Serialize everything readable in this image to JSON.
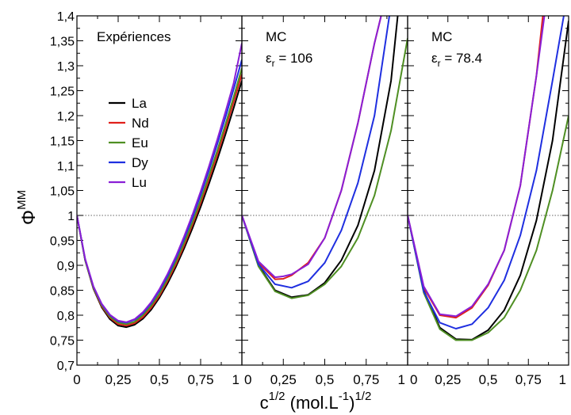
{
  "y_label": "Φ",
  "y_label_sup": "MM",
  "x_label_main": "c",
  "x_label_sup1": "1/2",
  "x_label_mid": " (mol.L",
  "x_label_sup2": "-1",
  "x_label_end": ")",
  "x_label_sup3": "1/2",
  "chart_data": [
    {
      "type": "line",
      "title": "Expériences",
      "subtitle": "",
      "xlim": [
        0,
        1
      ],
      "ylim": [
        0.7,
        1.4
      ],
      "x_ticks": [
        "0",
        "0,25",
        "0,5",
        "0,75",
        "1"
      ],
      "y_ticks": [
        "0,7",
        "0,75",
        "0,8",
        "0,85",
        "0,9",
        "0,95",
        "1",
        "1,05",
        "1,1",
        "1,15",
        "1,2",
        "1,25",
        "1,3",
        "1,35",
        "1,4"
      ],
      "reference_line": 1,
      "legend": [
        "La",
        "Nd",
        "Eu",
        "Dy",
        "Lu"
      ],
      "series": [
        {
          "name": "La",
          "color": "#000000",
          "x": [
            0,
            0.05,
            0.1,
            0.15,
            0.2,
            0.25,
            0.3,
            0.35,
            0.4,
            0.45,
            0.5,
            0.55,
            0.6,
            0.65,
            0.7,
            0.75,
            0.8,
            0.85,
            0.9,
            0.95,
            1.0
          ],
          "y": [
            1.0,
            0.91,
            0.853,
            0.816,
            0.792,
            0.779,
            0.776,
            0.781,
            0.793,
            0.811,
            0.835,
            0.864,
            0.897,
            0.934,
            0.974,
            1.017,
            1.063,
            1.111,
            1.162,
            1.215,
            1.27
          ]
        },
        {
          "name": "Nd",
          "color": "#e0201b",
          "x": [
            0,
            0.05,
            0.1,
            0.15,
            0.2,
            0.25,
            0.3,
            0.35,
            0.4,
            0.45,
            0.5,
            0.55,
            0.6,
            0.65,
            0.7,
            0.75,
            0.8,
            0.85,
            0.9,
            0.95,
            1.0
          ],
          "y": [
            1.0,
            0.91,
            0.854,
            0.818,
            0.795,
            0.782,
            0.779,
            0.784,
            0.796,
            0.815,
            0.839,
            0.869,
            0.902,
            0.94,
            0.981,
            1.025,
            1.072,
            1.121,
            1.173,
            1.227,
            1.283
          ]
        },
        {
          "name": "Eu",
          "color": "#4f8f23",
          "x": [
            0,
            0.05,
            0.1,
            0.15,
            0.2,
            0.25,
            0.3,
            0.35,
            0.4,
            0.45,
            0.5,
            0.55,
            0.6,
            0.65,
            0.7,
            0.75,
            0.8,
            0.85,
            0.9,
            0.95,
            1.0
          ],
          "y": [
            1.0,
            0.91,
            0.855,
            0.82,
            0.797,
            0.785,
            0.782,
            0.787,
            0.8,
            0.819,
            0.843,
            0.873,
            0.907,
            0.945,
            0.986,
            1.031,
            1.079,
            1.129,
            1.182,
            1.237,
            1.295
          ]
        },
        {
          "name": "Dy",
          "color": "#1f2fe0",
          "x": [
            0,
            0.05,
            0.1,
            0.15,
            0.2,
            0.25,
            0.3,
            0.35,
            0.4,
            0.45,
            0.5,
            0.55,
            0.6,
            0.65,
            0.7,
            0.75,
            0.8,
            0.85,
            0.9,
            0.95,
            1.0
          ],
          "y": [
            1.0,
            0.912,
            0.857,
            0.822,
            0.8,
            0.788,
            0.785,
            0.791,
            0.804,
            0.824,
            0.849,
            0.879,
            0.914,
            0.953,
            0.995,
            1.041,
            1.09,
            1.142,
            1.196,
            1.253,
            1.312
          ]
        },
        {
          "name": "Lu",
          "color": "#8a1fd6",
          "x": [
            0,
            0.05,
            0.1,
            0.15,
            0.2,
            0.25,
            0.3,
            0.35,
            0.4,
            0.45,
            0.5,
            0.55,
            0.6,
            0.65,
            0.7,
            0.75,
            0.8,
            0.85,
            0.9,
            0.95,
            1.0
          ],
          "y": [
            1.0,
            0.913,
            0.858,
            0.823,
            0.801,
            0.789,
            0.786,
            0.792,
            0.806,
            0.826,
            0.852,
            0.883,
            0.918,
            0.958,
            1.001,
            1.048,
            1.098,
            1.151,
            1.207,
            1.265,
            1.345
          ]
        }
      ]
    },
    {
      "type": "line",
      "title": "MC",
      "subtitle_symbol": "ε",
      "subtitle_sub": "r",
      "subtitle_value": "= 106",
      "xlim": [
        0,
        1
      ],
      "ylim": [
        0.7,
        1.4
      ],
      "x_ticks": [
        "0",
        "0,25",
        "0,5",
        "0,75",
        "1"
      ],
      "reference_line": 1,
      "series": [
        {
          "name": "La",
          "color": "#000000",
          "x": [
            0,
            0.1,
            0.2,
            0.3,
            0.4,
            0.5,
            0.6,
            0.7,
            0.8,
            0.9,
            0.94
          ],
          "y": [
            1.0,
            0.9,
            0.85,
            0.836,
            0.841,
            0.865,
            0.91,
            0.98,
            1.09,
            1.27,
            1.4
          ]
        },
        {
          "name": "Nd",
          "color": "#e0201b",
          "x": [
            0,
            0.1,
            0.2,
            0.25,
            0.3,
            0.4,
            0.5,
            0.6,
            0.7,
            0.8,
            0.84
          ],
          "y": [
            1.0,
            0.905,
            0.872,
            0.873,
            0.88,
            0.905,
            0.955,
            1.05,
            1.185,
            1.345,
            1.4
          ]
        },
        {
          "name": "Eu",
          "color": "#4f8f23",
          "x": [
            0,
            0.1,
            0.2,
            0.3,
            0.4,
            0.5,
            0.6,
            0.7,
            0.8,
            0.9,
            1.0
          ],
          "y": [
            1.0,
            0.898,
            0.848,
            0.834,
            0.84,
            0.862,
            0.898,
            0.955,
            1.04,
            1.17,
            1.355
          ]
        },
        {
          "name": "Dy",
          "color": "#1f2fe0",
          "x": [
            0,
            0.1,
            0.2,
            0.3,
            0.4,
            0.5,
            0.6,
            0.7,
            0.8,
            0.89
          ],
          "y": [
            1.0,
            0.902,
            0.862,
            0.855,
            0.868,
            0.905,
            0.97,
            1.065,
            1.2,
            1.4
          ]
        },
        {
          "name": "Lu",
          "color": "#8a1fd6",
          "x": [
            0,
            0.1,
            0.2,
            0.25,
            0.3,
            0.4,
            0.5,
            0.6,
            0.7,
            0.8,
            0.84
          ],
          "y": [
            1.0,
            0.908,
            0.876,
            0.878,
            0.882,
            0.902,
            0.955,
            1.05,
            1.185,
            1.345,
            1.4
          ]
        }
      ]
    },
    {
      "type": "line",
      "title": "MC",
      "subtitle_symbol": "ε",
      "subtitle_sub": "r",
      "subtitle_value": "= 78.4",
      "xlim": [
        0,
        1
      ],
      "ylim": [
        0.7,
        1.4
      ],
      "x_ticks": [
        "0",
        "0,25",
        "0,5",
        "0,75",
        "1"
      ],
      "reference_line": 1,
      "series": [
        {
          "name": "La",
          "color": "#000000",
          "x": [
            0,
            0.1,
            0.2,
            0.3,
            0.4,
            0.5,
            0.6,
            0.7,
            0.8,
            0.9,
            1.0
          ],
          "y": [
            1.0,
            0.85,
            0.775,
            0.752,
            0.751,
            0.77,
            0.81,
            0.88,
            0.99,
            1.15,
            1.39
          ]
        },
        {
          "name": "Nd",
          "color": "#e0201b",
          "x": [
            0,
            0.1,
            0.2,
            0.3,
            0.4,
            0.5,
            0.6,
            0.7,
            0.8,
            0.84
          ],
          "y": [
            1.0,
            0.855,
            0.8,
            0.795,
            0.815,
            0.86,
            0.93,
            1.06,
            1.28,
            1.4
          ]
        },
        {
          "name": "Eu",
          "color": "#4f8f23",
          "x": [
            0,
            0.1,
            0.2,
            0.3,
            0.4,
            0.5,
            0.6,
            0.7,
            0.8,
            0.9,
            1.0
          ],
          "y": [
            1.0,
            0.845,
            0.772,
            0.75,
            0.75,
            0.765,
            0.795,
            0.85,
            0.93,
            1.05,
            1.2
          ]
        },
        {
          "name": "Dy",
          "color": "#1f2fe0",
          "x": [
            0,
            0.1,
            0.2,
            0.3,
            0.4,
            0.5,
            0.6,
            0.7,
            0.8,
            0.9,
            0.97
          ],
          "y": [
            1.0,
            0.848,
            0.785,
            0.773,
            0.782,
            0.815,
            0.87,
            0.96,
            1.09,
            1.27,
            1.4
          ]
        },
        {
          "name": "Lu",
          "color": "#8a1fd6",
          "x": [
            0,
            0.1,
            0.2,
            0.3,
            0.4,
            0.5,
            0.6,
            0.7,
            0.8,
            0.85
          ],
          "y": [
            1.0,
            0.858,
            0.802,
            0.798,
            0.818,
            0.862,
            0.93,
            1.06,
            1.28,
            1.4
          ]
        }
      ]
    }
  ]
}
